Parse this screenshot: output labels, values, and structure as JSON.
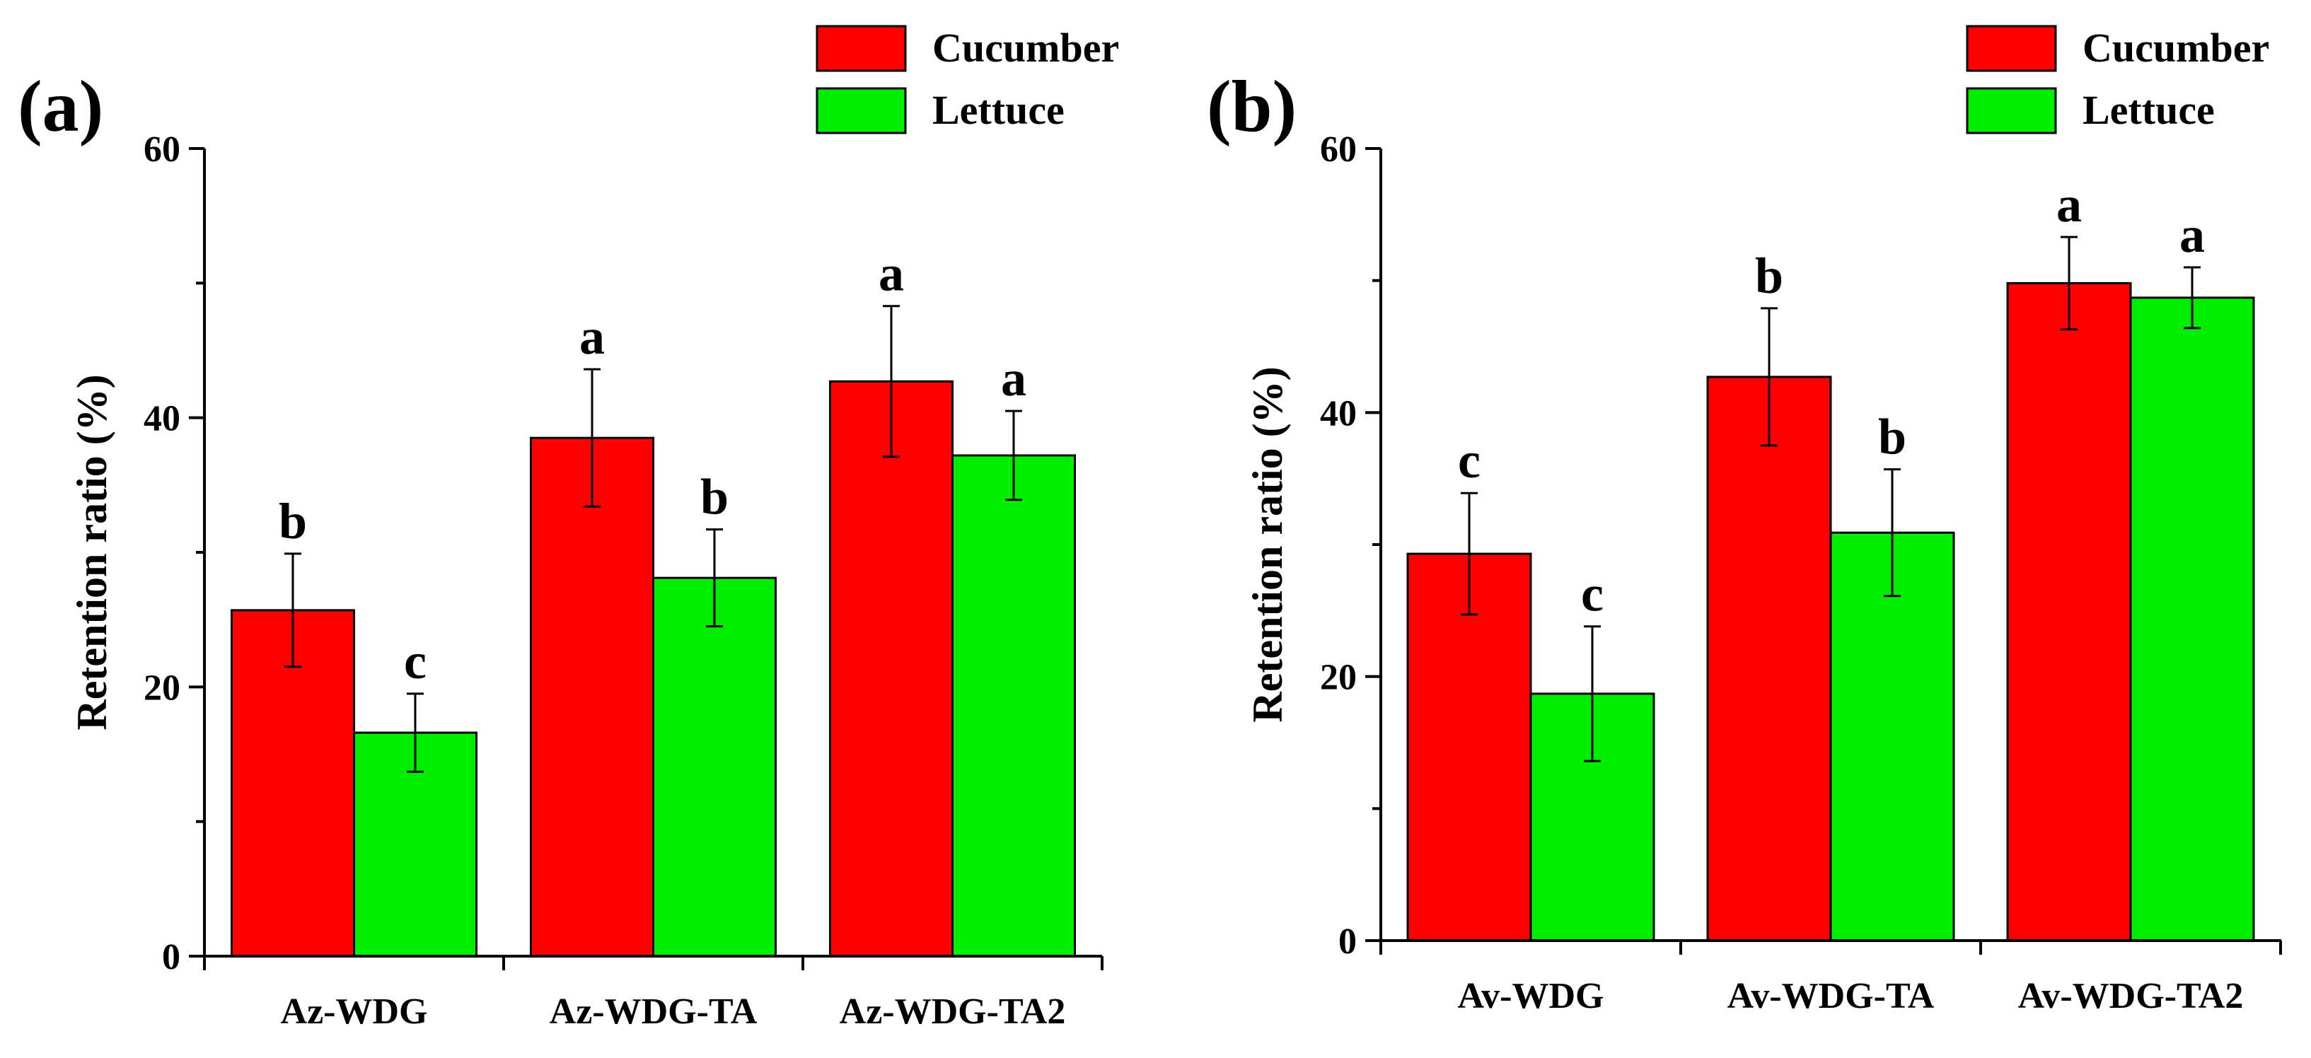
{
  "colors": {
    "cucumber": "#ff0000",
    "lettuce": "#00ee00",
    "axis": "#000000"
  },
  "chart_data": [
    {
      "panel_label": "(a)",
      "type": "bar",
      "ylabel": "Retention ratio (%)",
      "ylim": [
        0,
        60
      ],
      "yticks": [
        0,
        20,
        40,
        60
      ],
      "legend": "top-right",
      "categories": [
        "Az-WDG",
        "Az-WDG-TA",
        "Az-WDG-TA2"
      ],
      "series": [
        {
          "name": "Cucumber",
          "color": "#ff0000",
          "values": [
            25.7,
            38.5,
            42.7
          ],
          "errors": [
            4.2,
            5.1,
            5.6
          ],
          "letters": [
            "b",
            "a",
            "a"
          ]
        },
        {
          "name": "Lettuce",
          "color": "#00ee00",
          "values": [
            16.6,
            28.1,
            37.2
          ],
          "errors": [
            2.9,
            3.6,
            3.3
          ],
          "letters": [
            "c",
            "b",
            "a"
          ]
        }
      ]
    },
    {
      "panel_label": "(b)",
      "type": "bar",
      "ylabel": "Retention ratio (%)",
      "ylim": [
        0,
        60
      ],
      "yticks": [
        0,
        20,
        40,
        60
      ],
      "legend": "top-right",
      "categories": [
        "Av-WDG",
        "Av-WDG-TA",
        "Av-WDG-TA2"
      ],
      "series": [
        {
          "name": "Cucumber",
          "color": "#ff0000",
          "values": [
            29.3,
            42.7,
            49.8
          ],
          "errors": [
            4.6,
            5.2,
            3.5
          ],
          "letters": [
            "c",
            "b",
            "a"
          ]
        },
        {
          "name": "Lettuce",
          "color": "#00ee00",
          "values": [
            18.7,
            30.9,
            48.7
          ],
          "errors": [
            5.1,
            4.8,
            2.3
          ],
          "letters": [
            "c",
            "b",
            "a"
          ]
        }
      ]
    }
  ]
}
